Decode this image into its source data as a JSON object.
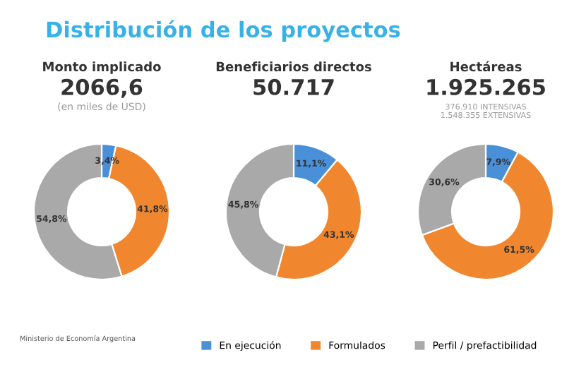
{
  "chart_data": [
    {
      "type": "donut",
      "title": "Monto implicado",
      "subtitle": "2066,6",
      "annotations": [
        "Distribución de los proyectos",
        "(en miles de USD)",
        "Ministerio de Economía Argentina"
      ],
      "categories": [
        "En ejecución",
        "Formulados",
        "Perfil / prefactibilidad"
      ],
      "values": [
        3.4,
        41.8,
        54.8
      ],
      "value_labels": [
        "3,4%",
        "41,8%",
        "54,8%"
      ],
      "colors": [
        "#4a90d9",
        "#f0862e",
        "#a9a9a9"
      ],
      "legend": "bottom"
    },
    {
      "type": "donut",
      "title": "Beneficiarios directos",
      "subtitle": "50.717",
      "categories": [
        null,
        null,
        null
      ],
      "values": [
        11.1,
        43.1,
        45.8
      ],
      "value_labels": [
        "11,1%",
        "43,1%",
        "45,8%"
      ],
      "colors": [
        "#4a90d9",
        "#f0862e",
        "#a9a9a9"
      ]
    },
    {
      "type": "donut",
      "title": "Hectáreas",
      "subtitle": "1.925.265",
      "annotations": [
        "376.910 INTENSIVAS",
        "1.548.355 EXTENSIVAS"
      ],
      "categories": [
        null,
        null,
        null
      ],
      "values": [
        7.9,
        61.5,
        30.6
      ],
      "value_labels": [
        "7,9%",
        "61,5%",
        "30,6%"
      ],
      "colors": [
        "#4a90d9",
        "#f0862e",
        "#a9a9a9"
      ]
    }
  ]
}
